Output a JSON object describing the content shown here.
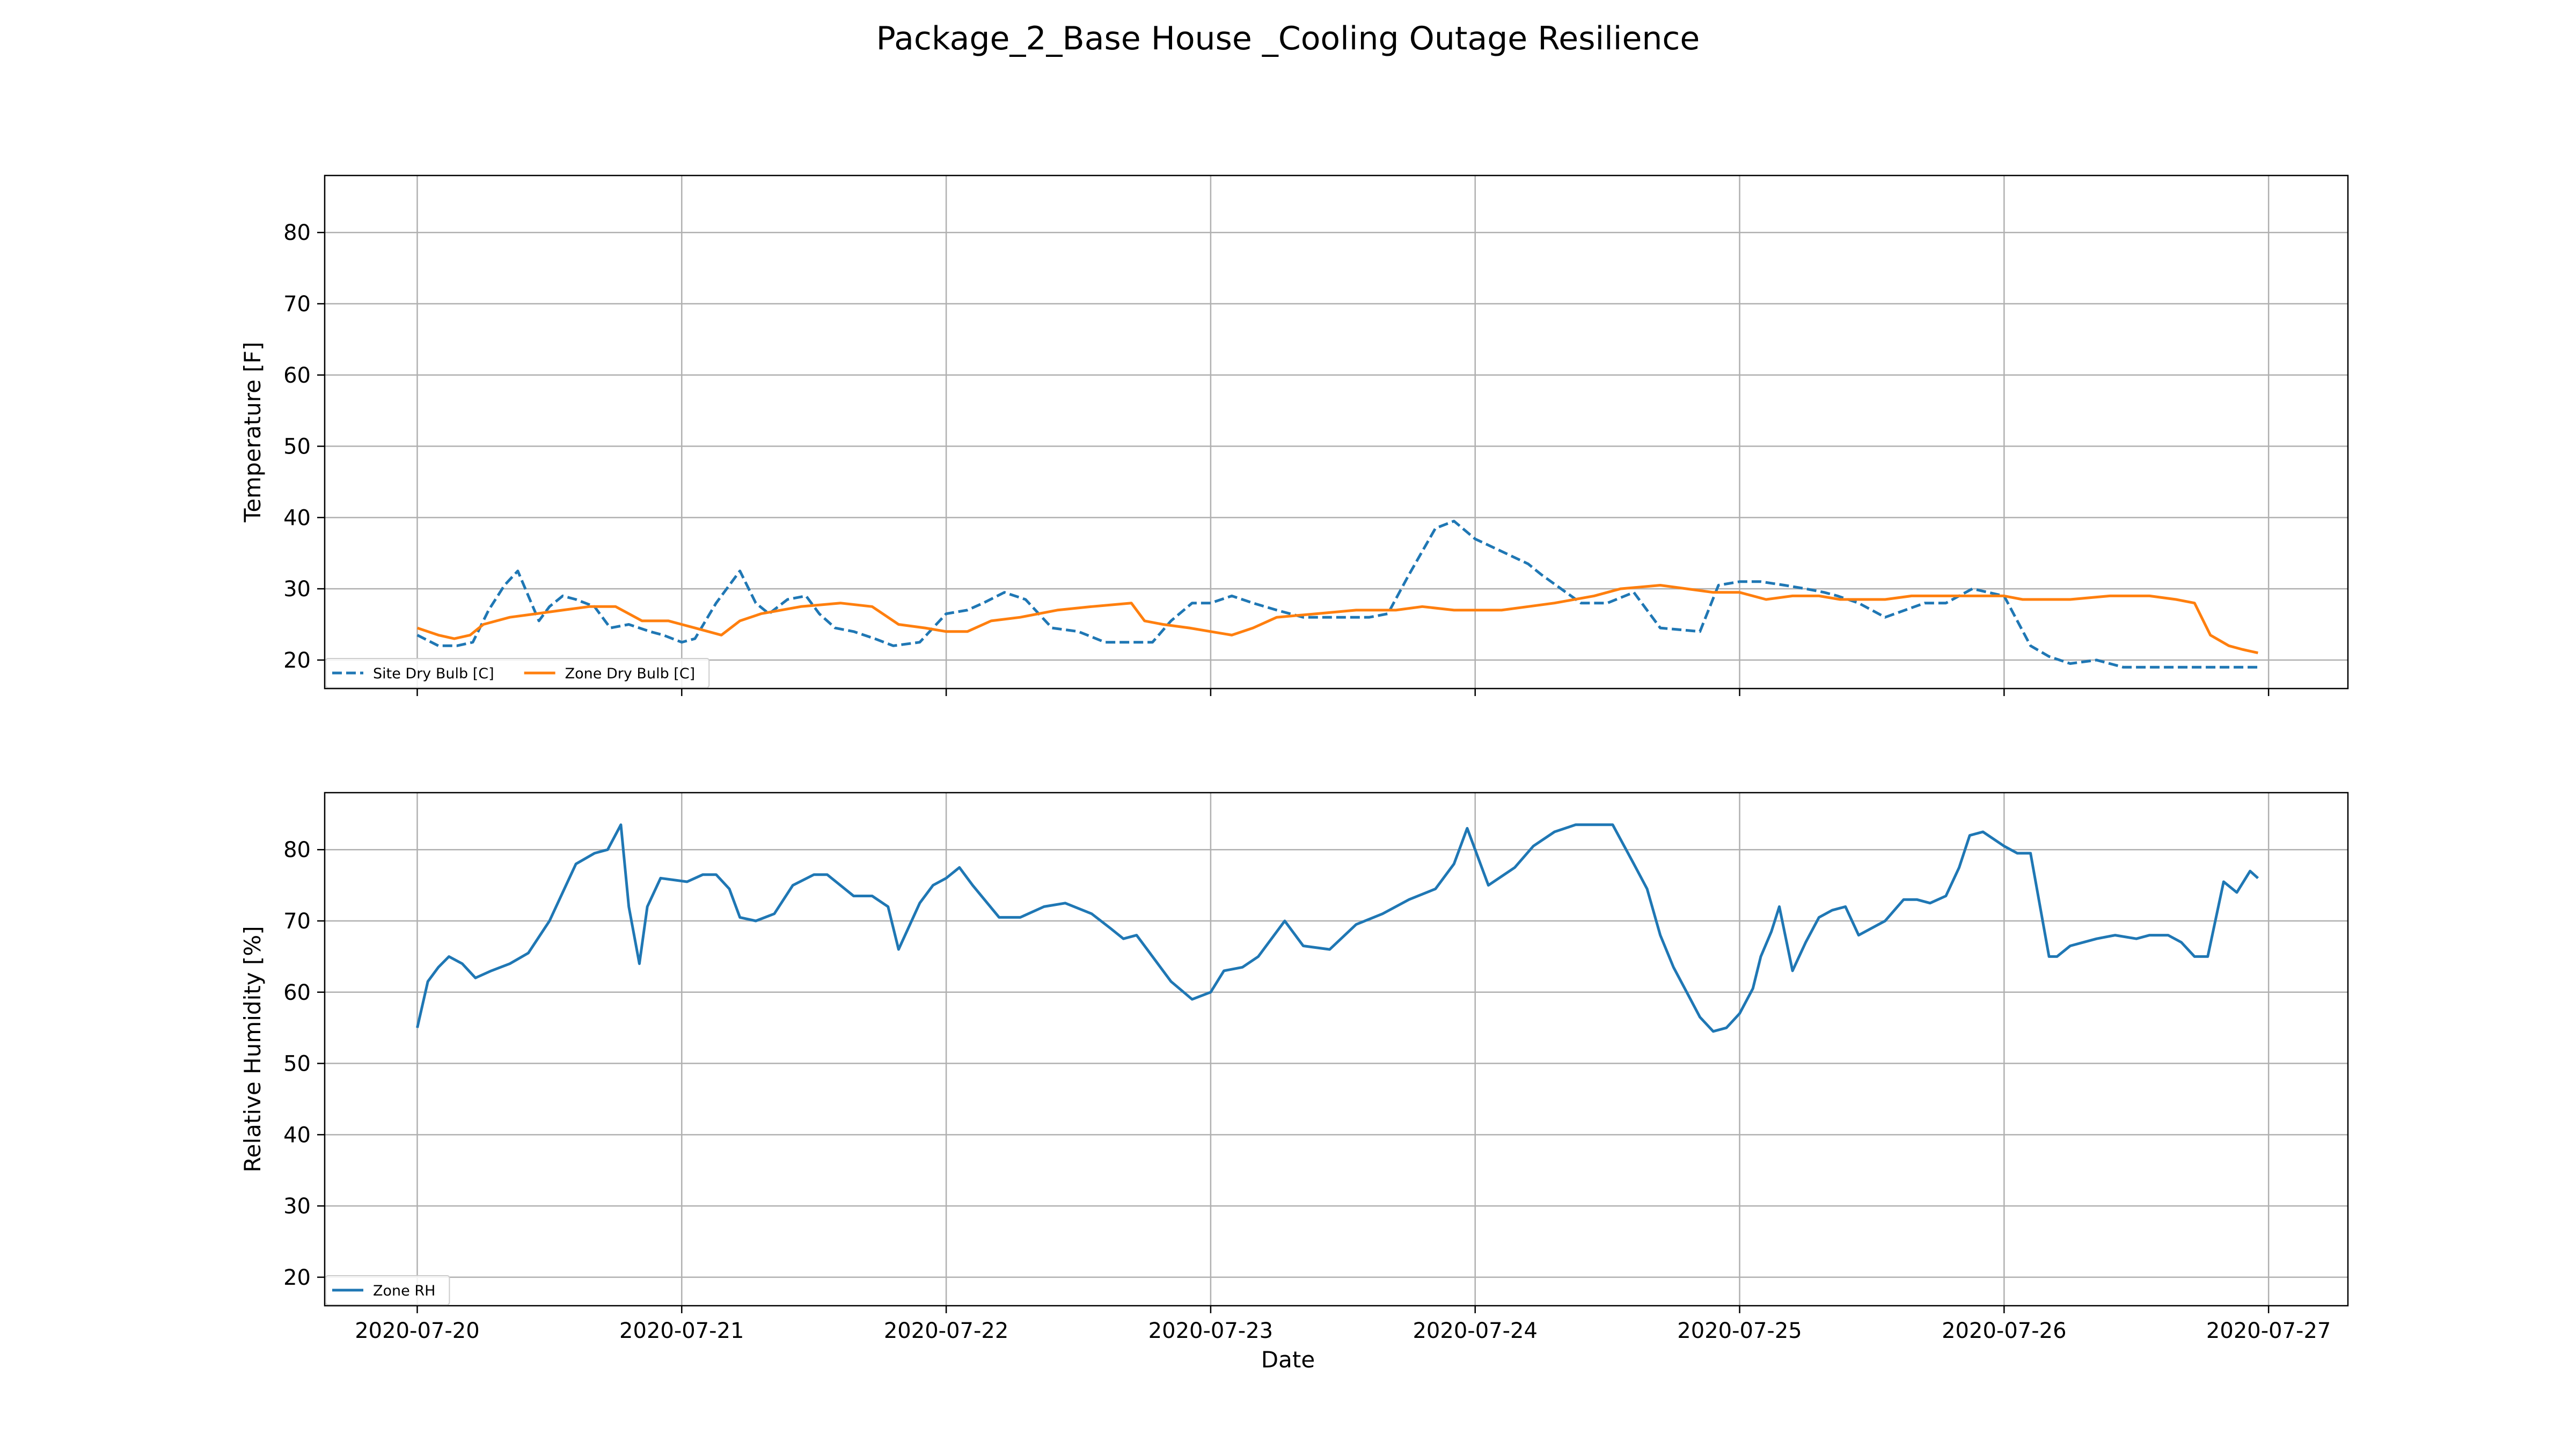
{
  "title": "Package_2_Base House _Cooling Outage Resilience",
  "x_axis_label": "Date",
  "x_ticks": [
    "2020-07-20",
    "2020-07-21",
    "2020-07-22",
    "2020-07-23",
    "2020-07-24",
    "2020-07-25",
    "2020-07-26",
    "2020-07-27"
  ],
  "colors": {
    "site_dry_bulb": "#1f77b4",
    "zone_dry_bulb": "#ff7f0e",
    "zone_rh": "#1f77b4",
    "grid": "#b0b0b0"
  },
  "chart_data": [
    {
      "type": "line",
      "ylabel": "Temperature [F]",
      "ylim": [
        16,
        88
      ],
      "xlim": [
        -0.35,
        7.3
      ],
      "yticks": [
        20,
        30,
        40,
        50,
        60,
        70,
        80
      ],
      "grid": true,
      "legend_placement": "lower-left",
      "x_unit": "days since 2020-07-20",
      "series": [
        {
          "name": "Site Dry Bulb [C]",
          "style": "dashed",
          "x": [
            0.0,
            0.08,
            0.15,
            0.21,
            0.27,
            0.33,
            0.38,
            0.46,
            0.5,
            0.55,
            0.6,
            0.67,
            0.73,
            0.8,
            0.88,
            0.93,
            1.0,
            1.05,
            1.13,
            1.22,
            1.28,
            1.33,
            1.4,
            1.47,
            1.52,
            1.58,
            1.65,
            1.73,
            1.8,
            1.9,
            2.0,
            2.08,
            2.14,
            2.22,
            2.3,
            2.4,
            2.5,
            2.6,
            2.7,
            2.78,
            2.85,
            2.93,
            3.0,
            3.08,
            3.16,
            3.25,
            3.35,
            3.45,
            3.6,
            3.67,
            3.75,
            3.85,
            3.92,
            4.0,
            4.2,
            4.25,
            4.4,
            4.5,
            4.6,
            4.7,
            4.85,
            4.92,
            5.0,
            5.08,
            5.17,
            5.25,
            5.32,
            5.37,
            5.45,
            5.55,
            5.7,
            5.78,
            5.88,
            6.0,
            6.1,
            6.17,
            6.25,
            6.35,
            6.45,
            6.5,
            6.55,
            6.63,
            6.68,
            6.73,
            6.8,
            6.85,
            6.9,
            6.96
          ],
          "y": [
            23.5,
            22.0,
            22.0,
            22.5,
            27.0,
            30.5,
            32.5,
            25.5,
            27.5,
            29.0,
            28.5,
            27.5,
            24.5,
            25.0,
            24.0,
            23.5,
            22.5,
            23.0,
            28.0,
            32.5,
            28.0,
            26.5,
            28.5,
            29.0,
            26.5,
            24.5,
            24.0,
            23.0,
            22.0,
            22.5,
            26.5,
            27.0,
            28.0,
            29.5,
            28.5,
            24.5,
            24.0,
            22.5,
            22.5,
            22.5,
            25.5,
            28.0,
            28.0,
            29.0,
            28.0,
            27.0,
            26.0,
            26.0,
            26.0,
            26.5,
            32.0,
            38.5,
            39.5,
            37.0,
            33.5,
            32.0,
            28.0,
            28.0,
            29.5,
            24.5,
            24.0,
            30.5,
            31.0,
            31.0,
            30.5,
            30.0,
            29.5,
            29.0,
            28.0,
            26.0,
            28.0,
            28.0,
            30.0,
            29.0,
            22.0,
            20.5,
            19.5,
            20.0,
            19.0,
            19.0,
            19.0,
            19.0,
            19.0,
            19.0,
            19.0,
            19.0,
            19.0,
            19.0
          ]
        },
        {
          "name": "Zone Dry Bulb [C]",
          "style": "solid",
          "x": [
            0.0,
            0.08,
            0.14,
            0.2,
            0.25,
            0.35,
            0.45,
            0.55,
            0.65,
            0.75,
            0.85,
            0.95,
            1.05,
            1.15,
            1.22,
            1.3,
            1.45,
            1.6,
            1.72,
            1.82,
            1.92,
            2.0,
            2.08,
            2.17,
            2.28,
            2.42,
            2.55,
            2.7,
            2.75,
            2.82,
            2.92,
            3.0,
            3.08,
            3.16,
            3.25,
            3.4,
            3.55,
            3.7,
            3.8,
            3.92,
            4.0,
            4.1,
            4.2,
            4.3,
            4.45,
            4.55,
            4.7,
            4.8,
            4.9,
            5.0,
            5.1,
            5.2,
            5.3,
            5.38,
            5.45,
            5.55,
            5.65,
            5.78,
            5.9,
            6.0,
            6.07,
            6.15,
            6.25,
            6.4,
            6.55,
            6.65,
            6.72,
            6.78,
            6.85,
            6.9,
            6.96
          ],
          "y": [
            24.5,
            23.5,
            23.0,
            23.5,
            25.0,
            26.0,
            26.5,
            27.0,
            27.5,
            27.5,
            25.5,
            25.5,
            24.5,
            23.5,
            25.5,
            26.5,
            27.5,
            28.0,
            27.5,
            25.0,
            24.5,
            24.0,
            24.0,
            25.5,
            26.0,
            27.0,
            27.5,
            28.0,
            25.5,
            25.0,
            24.5,
            24.0,
            23.5,
            24.5,
            26.0,
            26.5,
            27.0,
            27.0,
            27.5,
            27.0,
            27.0,
            27.0,
            27.5,
            28.0,
            29.0,
            30.0,
            30.5,
            30.0,
            29.5,
            29.5,
            28.5,
            29.0,
            29.0,
            28.5,
            28.5,
            28.5,
            29.0,
            29.0,
            29.0,
            29.0,
            28.5,
            28.5,
            28.5,
            29.0,
            29.0,
            28.5,
            28.0,
            23.5,
            22.0,
            21.5,
            21.0
          ]
        }
      ]
    },
    {
      "type": "line",
      "ylabel": "Relative Humidity [%]",
      "ylim": [
        16,
        88
      ],
      "xlim": [
        -0.35,
        7.3
      ],
      "yticks": [
        20,
        30,
        40,
        50,
        60,
        70,
        80
      ],
      "grid": true,
      "legend_placement": "lower-left",
      "x_unit": "days since 2020-07-20",
      "series": [
        {
          "name": "Zone RH",
          "style": "solid",
          "x": [
            0.0,
            0.04,
            0.08,
            0.12,
            0.17,
            0.22,
            0.28,
            0.35,
            0.42,
            0.5,
            0.55,
            0.6,
            0.67,
            0.72,
            0.77,
            0.8,
            0.84,
            0.87,
            0.92,
            1.02,
            1.08,
            1.13,
            1.18,
            1.22,
            1.28,
            1.35,
            1.42,
            1.5,
            1.55,
            1.65,
            1.72,
            1.78,
            1.82,
            1.9,
            1.95,
            2.0,
            2.05,
            2.1,
            2.2,
            2.28,
            2.37,
            2.45,
            2.55,
            2.62,
            2.67,
            2.72,
            2.77,
            2.85,
            2.93,
            3.0,
            3.05,
            3.12,
            3.18,
            3.28,
            3.35,
            3.45,
            3.55,
            3.65,
            3.75,
            3.85,
            3.92,
            3.97,
            4.05,
            4.15,
            4.22,
            4.3,
            4.38,
            4.45,
            4.52,
            4.6,
            4.65,
            4.7,
            4.75,
            4.8,
            4.85,
            4.9,
            4.95,
            5.0,
            5.05,
            5.08,
            5.12,
            5.15,
            5.2,
            5.25,
            5.3,
            5.35,
            5.4,
            5.45,
            5.55,
            5.62,
            5.67,
            5.72,
            5.78,
            5.83,
            5.87,
            5.92,
            6.0,
            6.05,
            6.1,
            6.17,
            6.2,
            6.25,
            6.3,
            6.35,
            6.42,
            6.5,
            6.55,
            6.62,
            6.67,
            6.72,
            6.77,
            6.83,
            6.88,
            6.93,
            6.96
          ],
          "y": [
            55.0,
            61.5,
            63.5,
            65.0,
            64.0,
            62.0,
            63.0,
            64.0,
            65.5,
            70.0,
            74.0,
            78.0,
            79.5,
            80.0,
            83.5,
            72.0,
            64.0,
            72.0,
            76.0,
            75.5,
            76.5,
            76.5,
            74.5,
            70.5,
            70.0,
            71.0,
            75.0,
            76.5,
            76.5,
            73.5,
            73.5,
            72.0,
            66.0,
            72.5,
            75.0,
            76.0,
            77.5,
            75.0,
            70.5,
            70.5,
            72.0,
            72.5,
            71.0,
            69.0,
            67.5,
            68.0,
            65.5,
            61.5,
            59.0,
            60.0,
            63.0,
            63.5,
            65.0,
            70.0,
            66.5,
            66.0,
            69.5,
            71.0,
            73.0,
            74.5,
            78.0,
            83.0,
            75.0,
            77.5,
            80.5,
            82.5,
            83.5,
            83.5,
            83.5,
            78.0,
            74.5,
            68.0,
            63.5,
            60.0,
            56.5,
            54.5,
            55.0,
            57.0,
            60.5,
            65.0,
            68.5,
            72.0,
            63.0,
            67.0,
            70.5,
            71.5,
            72.0,
            68.0,
            70.0,
            73.0,
            73.0,
            72.5,
            73.5,
            77.5,
            82.0,
            82.5,
            80.5,
            79.5,
            79.5,
            65.0,
            65.0,
            66.5,
            67.0,
            67.5,
            68.0,
            67.5,
            68.0,
            68.0,
            67.0,
            65.0,
            65.0,
            75.5,
            74.0,
            77.0,
            76.0
          ]
        }
      ]
    }
  ]
}
